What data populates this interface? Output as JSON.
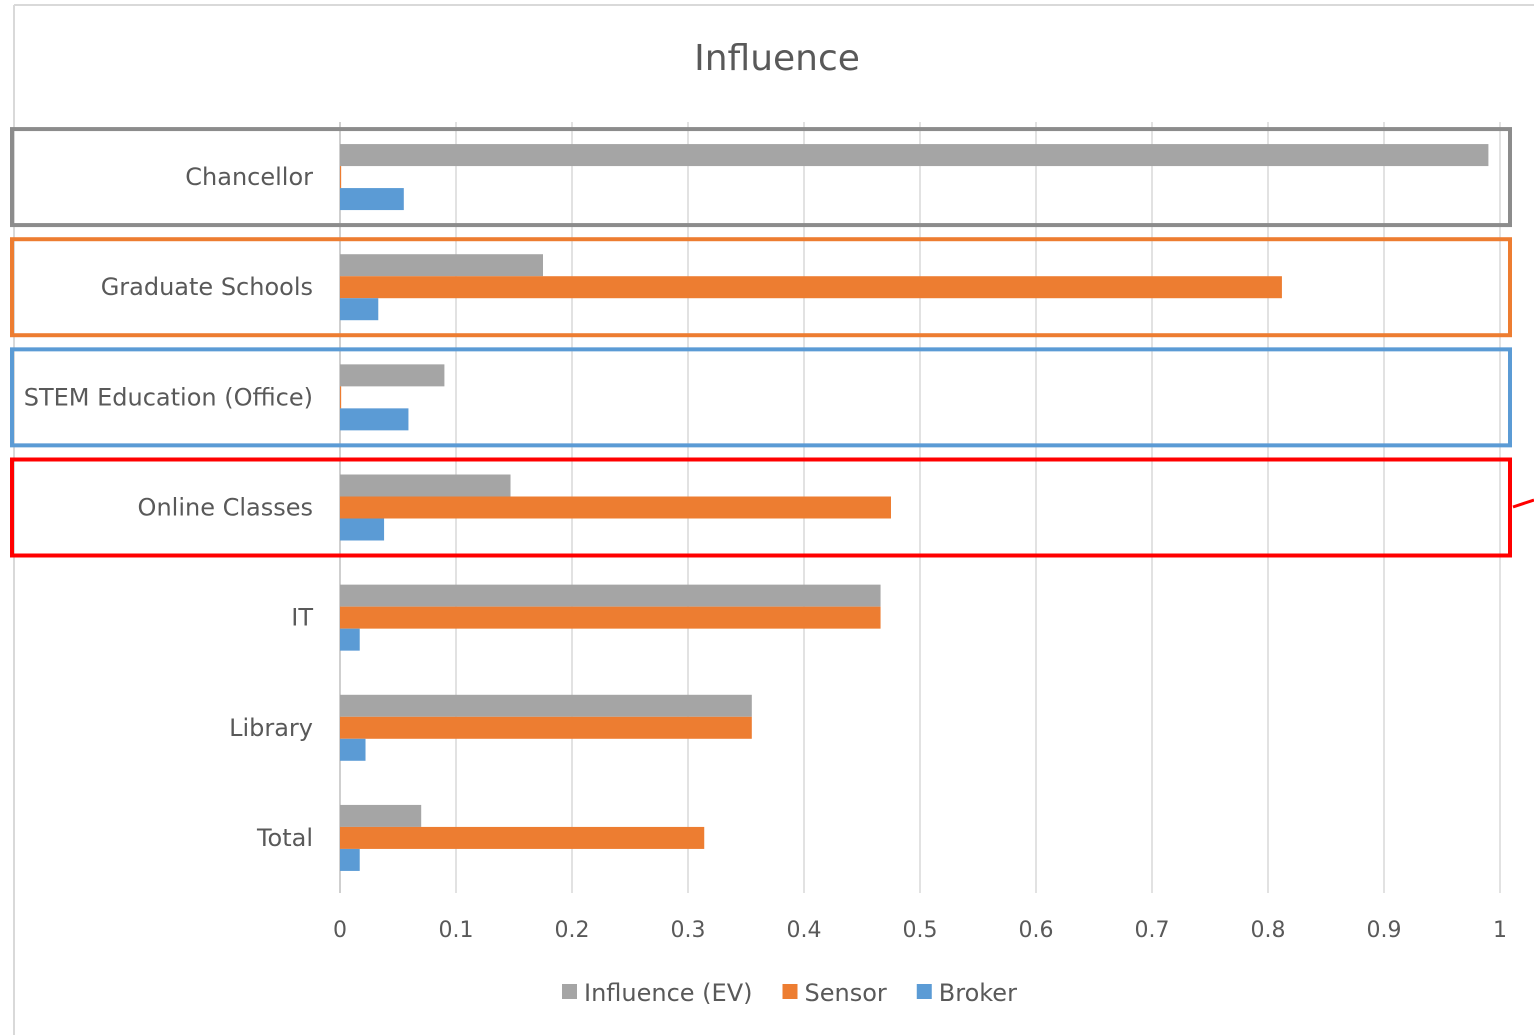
{
  "chart_data": {
    "type": "bar",
    "orientation": "horizontal",
    "title": "Influence",
    "xlabel": "",
    "ylabel": "",
    "xlim": [
      0,
      1
    ],
    "x_ticks": [
      "0",
      "0.1",
      "0.2",
      "0.3",
      "0.4",
      "0.5",
      "0.6",
      "0.7",
      "0.8",
      "0.9",
      "1"
    ],
    "grid": "vertical",
    "legend_position": "bottom",
    "categories": [
      "Chancellor",
      "Graduate Schools",
      "STEM Education (Office)",
      "Online Classes",
      "IT",
      "Library",
      "Total"
    ],
    "series": [
      {
        "name": "Influence (EV)",
        "color": "#a5a5a5",
        "values": [
          0.99,
          0.175,
          0.09,
          0.147,
          0.466,
          0.355,
          0.07
        ]
      },
      {
        "name": "Sensor",
        "color": "#ed7d31",
        "values": [
          0.001,
          0.812,
          0.001,
          0.475,
          0.466,
          0.355,
          0.314
        ]
      },
      {
        "name": "Broker",
        "color": "#5b9bd5",
        "values": [
          0.055,
          0.033,
          0.059,
          0.038,
          0.017,
          0.022,
          0.017
        ]
      }
    ],
    "highlight_boxes": [
      {
        "category": "Chancellor",
        "color": "#8c8c8c"
      },
      {
        "category": "Graduate Schools",
        "color": "#ed7d31"
      },
      {
        "category": "STEM Education (Office)",
        "color": "#5b9bd5"
      },
      {
        "category": "Online Classes",
        "color": "#ff0000"
      }
    ]
  }
}
